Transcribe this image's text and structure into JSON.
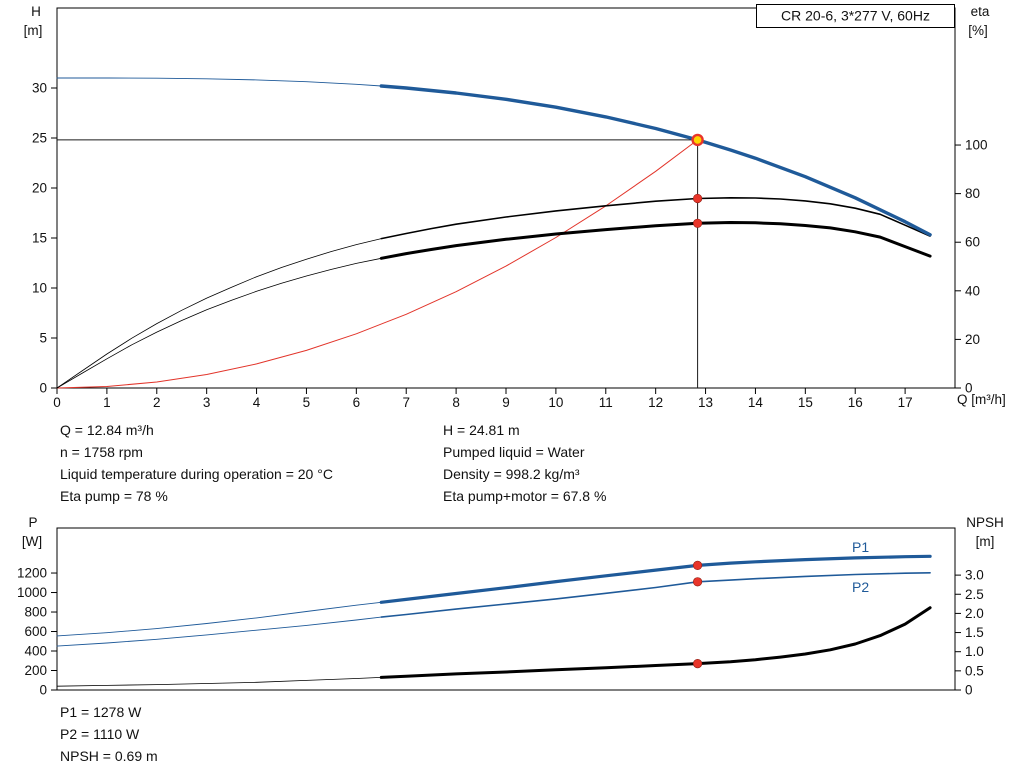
{
  "title": "CR 20-6, 3*277 V, 60Hz",
  "colors": {
    "curve_blue": "#1f5a99",
    "curve_black": "#000000",
    "system_red": "#e2342a",
    "marker_red": "#e8352a",
    "duty_yellow": "#ffd400",
    "axis_black": "#000000"
  },
  "info": {
    "left": [
      "Q = 12.84 m³/h",
      "n = 1758 rpm",
      "Liquid temperature during operation = 20 °C",
      "Eta pump = 78 %"
    ],
    "right": [
      "H = 24.81 m",
      "Pumped liquid = Water",
      "Density = 998.2 kg/m³",
      "Eta pump+motor = 67.8 %"
    ],
    "bottom": [
      "P1 = 1278 W",
      "P2 = 1110 W",
      "NPSH = 0.69 m"
    ]
  },
  "chart_data": [
    {
      "type": "line",
      "title": "CR 20-6, 3*277 V, 60Hz",
      "grid": false,
      "legend": "none",
      "x_axis": {
        "label": "Q [m³/h]",
        "range": [
          0,
          18
        ],
        "ticks": [
          0,
          1,
          2,
          3,
          4,
          5,
          6,
          7,
          8,
          9,
          10,
          11,
          12,
          13,
          14,
          15,
          16,
          17
        ]
      },
      "left_axis": {
        "label_lines": [
          "H",
          "[m]"
        ],
        "range": [
          0,
          38
        ],
        "ticks": [
          [
            0,
            "0"
          ],
          [
            5,
            "5"
          ],
          [
            10,
            "10"
          ],
          [
            15,
            "15"
          ],
          [
            20,
            "20"
          ],
          [
            25,
            "25"
          ],
          [
            30,
            "30"
          ]
        ]
      },
      "right_axis": {
        "label_lines": [
          "eta",
          "[%]"
        ],
        "range": [
          0,
          156.4
        ],
        "ticks": [
          [
            0,
            "0"
          ],
          [
            20,
            "20"
          ],
          [
            40,
            "40"
          ],
          [
            60,
            "60"
          ],
          [
            80,
            "80"
          ],
          [
            100,
            "100"
          ]
        ]
      },
      "duty_point": {
        "q": 12.84,
        "h": 24.81
      },
      "duty_lines": [
        {
          "axis": "left",
          "from": [
            0,
            24.81
          ],
          "to": [
            12.84,
            24.81
          ]
        },
        {
          "axis": "left",
          "from": [
            12.84,
            0
          ],
          "to": [
            12.84,
            24.81
          ]
        }
      ],
      "series": [
        {
          "name": "system-curve",
          "color": "#e2342a",
          "axis": "left",
          "width": 1,
          "points": [
            [
              0,
              0
            ],
            [
              1,
              0.15
            ],
            [
              2,
              0.6
            ],
            [
              3,
              1.35
            ],
            [
              4,
              2.41
            ],
            [
              5,
              3.76
            ],
            [
              6,
              5.42
            ],
            [
              7,
              7.37
            ],
            [
              8,
              9.63
            ],
            [
              9,
              12.19
            ],
            [
              10,
              15.05
            ],
            [
              11,
              18.21
            ],
            [
              12,
              21.67
            ],
            [
              12.84,
              24.81
            ]
          ]
        },
        {
          "name": "eta-pump-motor-curve",
          "color": "#000000",
          "axis": "right",
          "width": 3,
          "width_thin": 0.8,
          "thin_until": 6.5,
          "points": [
            [
              0,
              0
            ],
            [
              0.5,
              6
            ],
            [
              1,
              12
            ],
            [
              1.5,
              17.8
            ],
            [
              2,
              23
            ],
            [
              2.5,
              27.8
            ],
            [
              3,
              32.2
            ],
            [
              3.5,
              36.1
            ],
            [
              4,
              39.8
            ],
            [
              4.5,
              43.1
            ],
            [
              5,
              46.1
            ],
            [
              5.5,
              48.8
            ],
            [
              6,
              51.3
            ],
            [
              6.5,
              53.4
            ],
            [
              7,
              55.3
            ],
            [
              7.5,
              57
            ],
            [
              8,
              58.6
            ],
            [
              9,
              61.2
            ],
            [
              10,
              63.4
            ],
            [
              11,
              65.2
            ],
            [
              12,
              66.8
            ],
            [
              12.84,
              67.8
            ],
            [
              13.5,
              68.1
            ],
            [
              14,
              68
            ],
            [
              14.5,
              67.6
            ],
            [
              15,
              66.9
            ],
            [
              15.5,
              65.9
            ],
            [
              16,
              64.3
            ],
            [
              16.5,
              62.1
            ],
            [
              17,
              58.2
            ],
            [
              17.5,
              54.3
            ]
          ]
        },
        {
          "name": "eta-pump-curve",
          "color": "#000000",
          "axis": "right",
          "width": 1.6,
          "width_thin": 0.8,
          "thin_until": 6.5,
          "points": [
            [
              0,
              0
            ],
            [
              0.5,
              7
            ],
            [
              1,
              14
            ],
            [
              1.5,
              20.5
            ],
            [
              2,
              26.5
            ],
            [
              2.5,
              32
            ],
            [
              3,
              37
            ],
            [
              3.5,
              41.5
            ],
            [
              4,
              45.8
            ],
            [
              4.5,
              49.6
            ],
            [
              5,
              53
            ],
            [
              5.5,
              56.2
            ],
            [
              6,
              59
            ],
            [
              6.5,
              61.5
            ],
            [
              7,
              63.6
            ],
            [
              7.5,
              65.6
            ],
            [
              8,
              67.4
            ],
            [
              9,
              70.4
            ],
            [
              10,
              72.9
            ],
            [
              11,
              75
            ],
            [
              12,
              76.9
            ],
            [
              12.84,
              78
            ],
            [
              13.5,
              78.3
            ],
            [
              14,
              78.2
            ],
            [
              14.5,
              77.8
            ],
            [
              15,
              77
            ],
            [
              15.5,
              75.8
            ],
            [
              16,
              74
            ],
            [
              16.5,
              71.5
            ],
            [
              17,
              67
            ],
            [
              17.5,
              62.5
            ]
          ]
        },
        {
          "name": "qh-curve",
          "color": "#1f5a99",
          "axis": "left",
          "width": 3.4,
          "width_thin": 0.9,
          "thin_until": 6.5,
          "points": [
            [
              0,
              31
            ],
            [
              1,
              31
            ],
            [
              2,
              30.98
            ],
            [
              3,
              30.92
            ],
            [
              4,
              30.81
            ],
            [
              5,
              30.63
            ],
            [
              6,
              30.37
            ],
            [
              6.5,
              30.2
            ],
            [
              7,
              30
            ],
            [
              8,
              29.5
            ],
            [
              9,
              28.87
            ],
            [
              10,
              28.08
            ],
            [
              11,
              27.11
            ],
            [
              12,
              25.95
            ],
            [
              12.84,
              24.81
            ],
            [
              13.5,
              23.8
            ],
            [
              14,
              22.98
            ],
            [
              15,
              21.13
            ],
            [
              16,
              19.02
            ],
            [
              17,
              16.63
            ],
            [
              17.5,
              15.33
            ]
          ]
        }
      ],
      "markers": [
        {
          "type": "dot",
          "axis": "right",
          "q": 12.84,
          "value": 78,
          "name": "eta-pump-duty-dot"
        },
        {
          "type": "dot",
          "axis": "right",
          "q": 12.84,
          "value": 67.8,
          "name": "eta-pump-motor-duty-dot"
        },
        {
          "type": "duty",
          "axis": "left",
          "q": 12.84,
          "value": 24.81,
          "name": "duty-point-marker"
        }
      ]
    },
    {
      "type": "line",
      "grid": false,
      "legend": "none",
      "x_axis": {
        "range": [
          0,
          18
        ],
        "ticks": []
      },
      "left_axis": {
        "label_lines": [
          "P",
          "[W]"
        ],
        "range": [
          0,
          1662
        ],
        "ticks": [
          [
            0,
            "0"
          ],
          [
            200,
            "200"
          ],
          [
            400,
            "400"
          ],
          [
            600,
            "600"
          ],
          [
            800,
            "800"
          ],
          [
            1000,
            "1000"
          ],
          [
            1200,
            "1200"
          ]
        ]
      },
      "right_axis": {
        "label_lines": [
          "NPSH",
          "[m]"
        ],
        "range": [
          0,
          4.23
        ],
        "ticks": [
          [
            0,
            "0"
          ],
          [
            0.5,
            "0.5"
          ],
          [
            1,
            "1.0"
          ],
          [
            1.5,
            "1.5"
          ],
          [
            2,
            "2.0"
          ],
          [
            2.5,
            "2.5"
          ],
          [
            3,
            "3.0"
          ]
        ]
      },
      "series": [
        {
          "name": "p1-curve",
          "label": "P1",
          "color": "#1f5a99",
          "axis": "left",
          "width": 3.2,
          "width_thin": 0.9,
          "thin_until": 6.5,
          "points": [
            [
              0,
              555
            ],
            [
              1,
              588
            ],
            [
              2,
              630
            ],
            [
              3,
              682
            ],
            [
              4,
              740
            ],
            [
              5,
              805
            ],
            [
              6,
              870
            ],
            [
              6.5,
              900
            ],
            [
              7,
              930
            ],
            [
              8,
              990
            ],
            [
              9,
              1050
            ],
            [
              10,
              1112
            ],
            [
              11,
              1172
            ],
            [
              12,
              1230
            ],
            [
              12.84,
              1278
            ],
            [
              13.5,
              1302
            ],
            [
              14,
              1315
            ],
            [
              15,
              1338
            ],
            [
              16,
              1355
            ],
            [
              17,
              1368
            ],
            [
              17.5,
              1372
            ]
          ]
        },
        {
          "name": "p2-curve",
          "label": "P2",
          "color": "#1f5a99",
          "axis": "left",
          "width": 1.6,
          "width_thin": 0.9,
          "thin_until": 6.5,
          "points": [
            [
              0,
              450
            ],
            [
              1,
              482
            ],
            [
              2,
              520
            ],
            [
              3,
              565
            ],
            [
              4,
              613
            ],
            [
              5,
              663
            ],
            [
              6,
              718
            ],
            [
              6.5,
              748
            ],
            [
              7,
              775
            ],
            [
              8,
              830
            ],
            [
              9,
              882
            ],
            [
              10,
              935
            ],
            [
              11,
              992
            ],
            [
              12,
              1052
            ],
            [
              12.84,
              1110
            ],
            [
              13.5,
              1128
            ],
            [
              14,
              1142
            ],
            [
              15,
              1165
            ],
            [
              16,
              1185
            ],
            [
              17,
              1198
            ],
            [
              17.5,
              1202
            ]
          ]
        },
        {
          "name": "npsh-curve",
          "color": "#000000",
          "axis": "right",
          "width": 3,
          "width_thin": 0.8,
          "thin_until": 6.5,
          "points": [
            [
              0,
              0.1
            ],
            [
              1,
              0.12
            ],
            [
              2,
              0.14
            ],
            [
              3,
              0.17
            ],
            [
              4,
              0.2
            ],
            [
              5,
              0.25
            ],
            [
              6,
              0.3
            ],
            [
              6.5,
              0.33
            ],
            [
              7,
              0.36
            ],
            [
              8,
              0.42
            ],
            [
              9,
              0.47
            ],
            [
              10,
              0.53
            ],
            [
              11,
              0.58
            ],
            [
              12,
              0.64
            ],
            [
              12.84,
              0.69
            ],
            [
              13.5,
              0.74
            ],
            [
              14,
              0.79
            ],
            [
              14.5,
              0.86
            ],
            [
              15,
              0.94
            ],
            [
              15.5,
              1.05
            ],
            [
              16,
              1.2
            ],
            [
              16.5,
              1.42
            ],
            [
              17,
              1.72
            ],
            [
              17.5,
              2.15
            ]
          ]
        }
      ],
      "markers": [
        {
          "type": "dot",
          "axis": "left",
          "q": 12.84,
          "value": 1278,
          "name": "p1-duty-dot"
        },
        {
          "type": "dot",
          "axis": "left",
          "q": 12.84,
          "value": 1110,
          "name": "p2-duty-dot"
        },
        {
          "type": "dot",
          "axis": "right",
          "q": 12.84,
          "value": 0.69,
          "name": "npsh-duty-dot"
        }
      ]
    }
  ]
}
